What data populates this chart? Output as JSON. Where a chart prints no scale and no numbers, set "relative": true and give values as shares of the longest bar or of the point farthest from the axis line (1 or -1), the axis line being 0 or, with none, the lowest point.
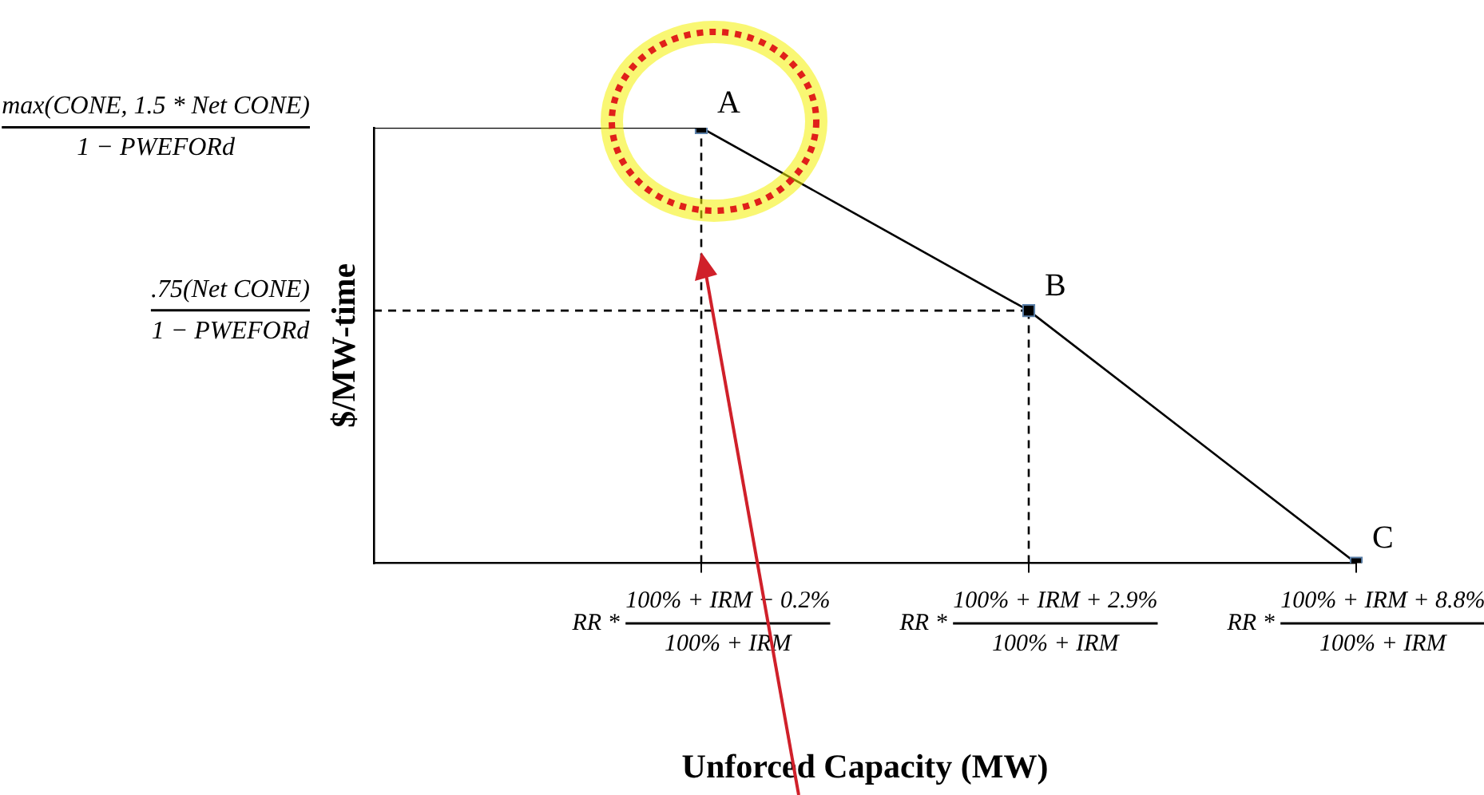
{
  "chart_data": {
    "type": "line",
    "xlabel": "Unforced Capacity (MW)",
    "ylabel": "$/MW-time",
    "relative": true,
    "categories": [
      null,
      "RR * 100% + IRM − 0.2%\n100% + IRM",
      "RR * 100% + IRM + 2.9%\n100% + IRM",
      "RR * 100% + IRM + 8.8%\n100% + IRM"
    ],
    "series": [
      {
        "color": "#000000",
        "values": [
          1,
          1,
          null,
          null
        ],
        "marker": "none",
        "line_style": "solid"
      },
      {
        "color": "#000000",
        "values": [
          null,
          1,
          0.58,
          0
        ],
        "marker": "square",
        "line_style": "solid"
      },
      {
        "color": "#000000",
        "x": [
          "RR * 100% + IRM − 0.2%\n100% + IRM",
          "RR * 100% + IRM − 0.2%\n100% + IRM"
        ],
        "values": [
          0,
          1
        ],
        "line_style": "dashed"
      },
      {
        "color": "#000000",
        "x": [
          "RR * 100% + IRM + 2.9%\n100% + IRM",
          "RR * 100% + IRM + 2.9%\n100% + IRM"
        ],
        "values": [
          0,
          0.58
        ],
        "line_style": "dashed"
      },
      {
        "color": "#000000",
        "values": [
          0.58,
          0.58,
          0.58,
          null
        ],
        "marker": "none",
        "line_style": "dashed"
      }
    ],
    "annotations": [
      "max(CONE, 1.5 * Net CONE)\n1 − PWEFORd",
      ".75(Net CONE)\n1 − PWEFORd",
      {
        "text": "A",
        "x": "RR * 100% + IRM − 0.2%\n100% + IRM",
        "y": 1
      },
      {
        "text": "B",
        "x": "RR * 100% + IRM + 2.9%\n100% + IRM",
        "y": 0.58
      },
      {
        "text": "C",
        "x": "RR * 100% + IRM + 8.8%\n100% + IRM",
        "y": 0
      }
    ],
    "grid": false,
    "legend": false
  }
}
